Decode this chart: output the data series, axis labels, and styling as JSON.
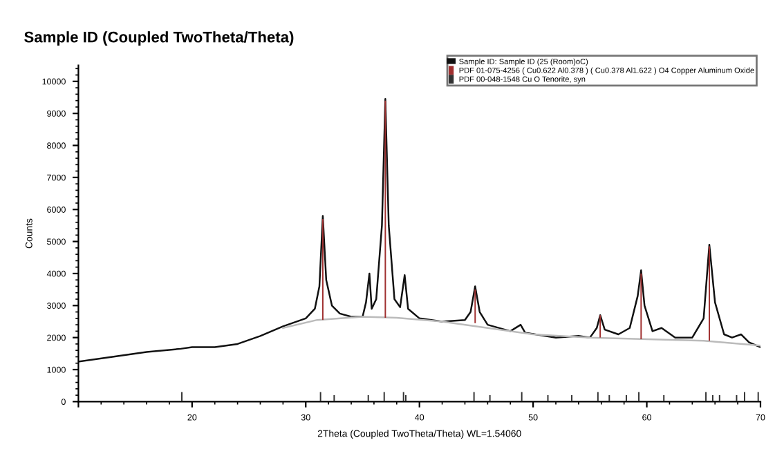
{
  "chart_data": {
    "type": "line",
    "title": "Sample ID (Coupled TwoTheta/Theta)",
    "xlabel": "2Theta (Coupled TwoTheta/Theta) WL=1.54060",
    "ylabel": "Counts",
    "xlim": [
      10,
      70
    ],
    "xticks": [
      {
        "value": 10,
        "label": null
      },
      20,
      30,
      40,
      50,
      60,
      70
    ],
    "ylim": [
      0,
      10500
    ],
    "yticks": [
      0,
      1000,
      2000,
      3000,
      4000,
      5000,
      6000,
      7000,
      8000,
      9000,
      10000
    ],
    "grid": false,
    "legend": "top right",
    "marker": "none",
    "line_style": "solid",
    "series": [
      {
        "name": "Sample ID: Sample ID (25 (Room)oC)",
        "color": "#111111",
        "x": [
          10,
          13,
          16,
          19,
          20,
          22,
          24,
          26,
          28,
          30,
          30.8,
          31.2,
          31.5,
          31.8,
          32.3,
          33,
          34,
          35,
          35.3,
          35.6,
          35.8,
          36.2,
          36.7,
          37.0,
          37.3,
          37.8,
          38.3,
          38.7,
          39.0,
          40,
          42,
          44,
          44.5,
          44.9,
          45.3,
          46,
          48,
          48.9,
          49.3,
          52,
          54,
          55,
          55.6,
          55.9,
          56.3,
          57.5,
          58.5,
          59.2,
          59.5,
          59.8,
          60.5,
          61.3,
          62.5,
          64,
          65,
          65.5,
          66,
          66.8,
          67.5,
          68.3,
          69,
          70
        ],
        "values": [
          1250,
          1400,
          1550,
          1650,
          1700,
          1700,
          1800,
          2050,
          2350,
          2600,
          2900,
          3600,
          5800,
          3800,
          3000,
          2750,
          2650,
          2650,
          3100,
          4000,
          2900,
          3200,
          5500,
          9450,
          5500,
          3200,
          2950,
          3950,
          2900,
          2600,
          2500,
          2550,
          2800,
          3600,
          2800,
          2400,
          2200,
          2400,
          2150,
          2000,
          2050,
          2000,
          2300,
          2700,
          2250,
          2100,
          2300,
          3300,
          4100,
          3000,
          2200,
          2300,
          2000,
          2000,
          2600,
          4900,
          3100,
          2100,
          2000,
          2100,
          1850,
          1700
        ]
      },
      {
        "color": "#bbbbbb",
        "x": [
          28,
          31,
          35,
          38,
          42,
          46,
          50,
          55,
          60,
          65,
          70
        ],
        "values": [
          2300,
          2550,
          2650,
          2620,
          2500,
          2300,
          2100,
          2000,
          1950,
          1900,
          1750
        ]
      },
      {
        "name": "PDF 01-075-4256 ( Cu0.622 Al0.378 ) ( Cu0.378 Al1.622 ) O4 Copper Aluminum Oxide",
        "type": "bar",
        "color": "#a03030",
        "x": [
          31.5,
          37.0,
          44.9,
          55.9,
          59.5,
          65.5
        ],
        "base": [
          2550,
          2620,
          2450,
          2000,
          1950,
          1900
        ],
        "values": [
          3150,
          6780,
          1050,
          700,
          2050,
          2950
        ]
      },
      {
        "name": "PDF 00-048-1548 Cu O Tenorite, syn",
        "type": "bar",
        "color": "#333333",
        "x": [
          19.1,
          31.3,
          32.5,
          35.5,
          36.9,
          38.6,
          38.8,
          44.8,
          46.2,
          49.0,
          51.3,
          53.4,
          55.7,
          56.7,
          58.2,
          59.3,
          61.5,
          65.2,
          65.8,
          66.4,
          67.9,
          68.6,
          69.8
        ],
        "base": [
          0,
          0,
          0,
          0,
          0,
          0,
          0,
          0,
          0,
          0,
          0,
          0,
          0,
          0,
          0,
          0,
          0,
          0,
          0,
          0,
          0,
          0,
          0
        ],
        "values": [
          300,
          300,
          200,
          200,
          300,
          300,
          200,
          300,
          200,
          300,
          200,
          200,
          300,
          200,
          200,
          300,
          200,
          300,
          200,
          200,
          200,
          300,
          300
        ]
      }
    ]
  }
}
